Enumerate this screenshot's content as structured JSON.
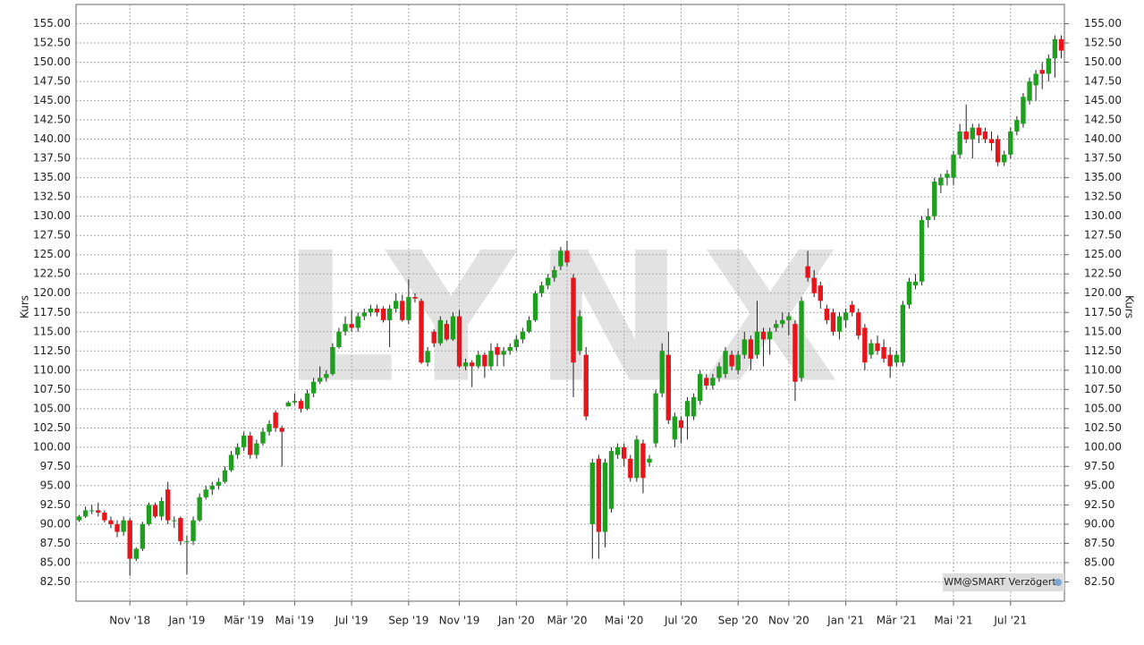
{
  "chart_data": {
    "type": "candlestick",
    "y_label": "Kurs",
    "watermark": "LYNX",
    "badge": "WM@SMART Verzögert",
    "up_color": "#1f9e1f",
    "down_color": "#e8141c",
    "grid": true,
    "ylim": [
      80,
      157.5
    ],
    "yticks": [
      {
        "value": 82.5,
        "label": "82.50"
      },
      {
        "value": 85,
        "label": "85.00"
      },
      {
        "value": 87.5,
        "label": "87.50"
      },
      {
        "value": 90,
        "label": "90.00"
      },
      {
        "value": 92.5,
        "label": "92.50"
      },
      {
        "value": 95,
        "label": "95.00"
      },
      {
        "value": 97.5,
        "label": "97.50"
      },
      {
        "value": 100,
        "label": "100.00"
      },
      {
        "value": 102.5,
        "label": "102.50"
      },
      {
        "value": 105,
        "label": "105.00"
      },
      {
        "value": 107.5,
        "label": "107.50"
      },
      {
        "value": 110,
        "label": "110.00"
      },
      {
        "value": 112.5,
        "label": "112.50"
      },
      {
        "value": 115,
        "label": "115.00"
      },
      {
        "value": 117.5,
        "label": "117.50"
      },
      {
        "value": 120,
        "label": "120.00"
      },
      {
        "value": 122.5,
        "label": "122.50"
      },
      {
        "value": 125,
        "label": "125.00"
      },
      {
        "value": 127.5,
        "label": "127.50"
      },
      {
        "value": 130,
        "label": "130.00"
      },
      {
        "value": 132.5,
        "label": "132.50"
      },
      {
        "value": 135,
        "label": "135.00"
      },
      {
        "value": 137.5,
        "label": "137.50"
      },
      {
        "value": 140,
        "label": "140.00"
      },
      {
        "value": 142.5,
        "label": "142.50"
      },
      {
        "value": 145,
        "label": "145.00"
      },
      {
        "value": 147.5,
        "label": "147.50"
      },
      {
        "value": 150,
        "label": "150.00"
      },
      {
        "value": 152.5,
        "label": "152.50"
      },
      {
        "value": 155,
        "label": "155.00"
      }
    ],
    "categories": [
      null,
      null,
      null,
      null,
      null,
      null,
      null,
      null,
      "Nov '18",
      null,
      null,
      null,
      null,
      null,
      null,
      null,
      null,
      "Jan '19",
      null,
      null,
      null,
      null,
      null,
      null,
      null,
      null,
      "Mär '19",
      null,
      null,
      null,
      null,
      null,
      null,
      null,
      "Mai '19",
      null,
      null,
      null,
      null,
      null,
      null,
      null,
      null,
      "Jul '19",
      null,
      null,
      null,
      null,
      null,
      null,
      null,
      null,
      "Sep '19",
      null,
      null,
      null,
      null,
      null,
      null,
      null,
      "Nov '19",
      null,
      null,
      null,
      null,
      null,
      null,
      null,
      null,
      "Jan '20",
      null,
      null,
      null,
      null,
      null,
      null,
      null,
      "Mär '20",
      null,
      null,
      null,
      null,
      null,
      null,
      null,
      null,
      "Mai '20",
      null,
      null,
      null,
      null,
      null,
      null,
      null,
      null,
      "Jul '20",
      null,
      null,
      null,
      null,
      null,
      null,
      null,
      null,
      "Sep '20",
      null,
      null,
      null,
      null,
      null,
      null,
      null,
      "Nov '20",
      null,
      null,
      null,
      null,
      null,
      null,
      null,
      null,
      "Jan '21",
      null,
      null,
      null,
      null,
      null,
      null,
      null,
      "Mär '21",
      null,
      null,
      null,
      null,
      null,
      null,
      null,
      null,
      "Mai '21",
      null,
      null,
      null,
      null,
      null,
      null,
      null,
      null,
      "Jul '21",
      null,
      null,
      null,
      null,
      null,
      null,
      null,
      null
    ],
    "open": [
      90.5,
      91.0,
      91.8,
      91.8,
      91.5,
      90.5,
      90.0,
      89.0,
      90.5,
      85.5,
      86.8,
      90.0,
      92.5,
      91.0,
      94.5,
      90.5,
      90.8,
      87.8,
      87.8,
      90.5,
      93.5,
      94.5,
      95.0,
      95.5,
      97.0,
      99.0,
      100.0,
      101.5,
      99.0,
      100.5,
      102.0,
      104.5,
      102.5,
      105.3,
      105.8,
      106.0,
      105.0,
      107.0,
      108.5,
      109.0,
      109.5,
      113.0,
      115.0,
      116.0,
      115.5,
      117.0,
      117.5,
      118.0,
      118.0,
      116.5,
      118.0,
      119.0,
      116.5,
      119.5,
      119.0,
      111.0,
      115.0,
      113.5,
      116.0,
      114.0,
      117.0,
      110.5,
      111.0,
      110.5,
      112.0,
      110.5,
      113.0,
      112.0,
      112.5,
      113.0,
      114.0,
      115.0,
      116.5,
      120.0,
      121.0,
      122.0,
      123.5,
      125.5,
      122.0,
      112.5,
      112.0,
      90.0,
      98.5,
      89.0,
      92.0,
      99.0,
      100.0,
      98.5,
      96.0,
      100.5,
      98.0,
      100.5,
      107.0,
      112.0,
      101.0,
      103.5,
      104.0,
      104.0,
      106.0,
      109.0,
      108.0,
      109.0,
      109.5,
      112.0,
      110.0,
      112.0,
      114.0,
      112.0,
      115.0,
      114.0,
      115.5,
      116.0,
      116.5,
      116.0,
      109.0,
      123.5,
      122.0,
      121.0,
      118.0,
      117.5,
      115.0,
      116.5,
      118.5,
      117.5,
      115.5,
      112.0,
      113.5,
      113.0,
      112.0,
      111.0,
      111.0,
      118.5,
      121.0,
      121.5,
      129.5,
      130.0,
      134.0,
      135.0,
      135.0,
      138.0,
      141.0,
      140.0,
      141.5,
      141.0,
      140.0,
      140.0,
      137.0,
      138.0,
      141.0,
      142.0,
      145.0,
      147.0,
      149.0,
      148.5,
      150.5,
      153.0
    ],
    "high": [
      91.2,
      92.3,
      92.5,
      92.8,
      91.8,
      91.0,
      90.5,
      91.0,
      90.8,
      87.0,
      90.3,
      92.8,
      92.8,
      93.5,
      95.5,
      91.0,
      91.0,
      88.5,
      91.0,
      94.0,
      95.0,
      95.5,
      96.0,
      97.5,
      99.5,
      100.5,
      102.0,
      102.0,
      101.0,
      102.5,
      103.5,
      104.8,
      102.8,
      106.0,
      107.0,
      106.3,
      107.5,
      109.0,
      110.5,
      110.0,
      113.5,
      115.5,
      117.0,
      117.8,
      117.5,
      118.0,
      118.5,
      118.5,
      118.3,
      118.5,
      120.0,
      119.8,
      121.8,
      120.0,
      119.3,
      113.0,
      115.3,
      117.0,
      116.5,
      117.5,
      117.8,
      111.5,
      111.3,
      112.5,
      112.3,
      113.5,
      113.5,
      113.0,
      113.5,
      114.5,
      115.5,
      117.0,
      120.3,
      121.5,
      122.5,
      123.5,
      126.0,
      126.8,
      122.5,
      117.8,
      113.0,
      98.5,
      99.0,
      98.5,
      100.0,
      100.5,
      100.5,
      99.0,
      101.5,
      101.0,
      99.0,
      107.5,
      113.5,
      115.0,
      104.5,
      104.0,
      106.5,
      107.0,
      110.0,
      109.5,
      109.5,
      111.0,
      113.0,
      112.5,
      112.5,
      115.0,
      114.5,
      119.0,
      115.5,
      115.5,
      116.5,
      117.5,
      117.5,
      116.5,
      119.5,
      125.5,
      123.0,
      121.5,
      118.5,
      118.0,
      117.5,
      118.0,
      119.0,
      118.0,
      116.0,
      114.0,
      114.5,
      114.0,
      113.0,
      112.5,
      119.0,
      122.0,
      122.5,
      130.0,
      131.0,
      135.0,
      135.5,
      136.0,
      138.5,
      142.0,
      144.5,
      142.0,
      142.0,
      141.5,
      141.0,
      140.5,
      138.5,
      141.5,
      143.0,
      146.0,
      148.0,
      149.0,
      150.0,
      151.0,
      153.5,
      153.5
    ],
    "low": [
      90.3,
      90.8,
      91.3,
      91.0,
      90.2,
      89.5,
      88.3,
      88.5,
      83.3,
      85.2,
      86.5,
      89.8,
      90.8,
      90.5,
      90.0,
      89.5,
      87.3,
      83.5,
      87.3,
      90.3,
      93.2,
      93.8,
      94.5,
      95.3,
      96.8,
      98.5,
      99.5,
      98.5,
      98.5,
      100.2,
      101.5,
      102.0,
      97.5,
      105.3,
      105.5,
      104.5,
      104.8,
      106.5,
      108.2,
      108.5,
      109.3,
      112.8,
      114.5,
      115.0,
      115.0,
      116.5,
      117.0,
      117.0,
      116.2,
      113.0,
      117.5,
      116.3,
      116.0,
      118.8,
      110.8,
      110.5,
      113.0,
      113.2,
      113.8,
      113.8,
      110.3,
      110.0,
      107.8,
      110.2,
      109.0,
      110.0,
      110.5,
      110.5,
      112.0,
      112.5,
      113.5,
      114.8,
      116.3,
      119.5,
      120.5,
      121.5,
      123.0,
      123.5,
      106.5,
      112.0,
      103.5,
      85.5,
      85.5,
      87.0,
      91.5,
      98.5,
      97.5,
      95.5,
      95.5,
      94.0,
      97.5,
      100.0,
      106.5,
      103.0,
      100.0,
      100.5,
      101.0,
      103.5,
      105.5,
      107.5,
      107.5,
      108.5,
      109.0,
      110.0,
      109.5,
      111.5,
      110.0,
      111.5,
      110.5,
      112.0,
      115.0,
      115.5,
      114.5,
      106.0,
      108.5,
      121.5,
      119.5,
      118.0,
      116.0,
      114.5,
      114.0,
      115.5,
      117.0,
      114.0,
      110.0,
      111.5,
      112.0,
      111.0,
      109.0,
      110.5,
      110.5,
      118.0,
      120.5,
      121.0,
      128.5,
      129.5,
      133.0,
      134.0,
      134.0,
      137.5,
      139.5,
      137.5,
      139.5,
      139.5,
      138.5,
      136.5,
      136.5,
      137.5,
      140.5,
      141.5,
      144.5,
      145.0,
      146.5,
      147.5,
      148.0,
      150.5
    ],
    "close": [
      91.0,
      91.8,
      91.8,
      91.5,
      90.5,
      90.0,
      89.0,
      90.5,
      85.5,
      86.8,
      90.0,
      92.5,
      91.0,
      93.0,
      90.5,
      90.5,
      87.8,
      87.8,
      90.5,
      93.5,
      94.5,
      95.0,
      95.5,
      97.0,
      99.0,
      100.0,
      101.5,
      99.0,
      100.5,
      102.0,
      103.0,
      102.5,
      102.0,
      105.8,
      106.0,
      105.0,
      107.0,
      108.5,
      109.0,
      109.5,
      113.0,
      115.0,
      116.0,
      115.5,
      117.0,
      117.5,
      118.0,
      117.5,
      116.5,
      118.0,
      119.0,
      116.5,
      119.5,
      119.3,
      111.0,
      112.5,
      113.5,
      116.5,
      114.0,
      117.0,
      110.5,
      111.0,
      110.5,
      112.0,
      110.5,
      112.5,
      112.0,
      112.5,
      113.0,
      114.0,
      115.0,
      116.5,
      120.0,
      121.0,
      122.0,
      123.0,
      125.5,
      124.0,
      111.0,
      117.0,
      104.0,
      98.0,
      89.0,
      98.0,
      99.5,
      100.0,
      98.5,
      96.0,
      101.0,
      96.0,
      98.5,
      107.0,
      112.5,
      103.5,
      104.0,
      102.5,
      106.0,
      106.5,
      109.5,
      108.0,
      109.0,
      110.5,
      112.5,
      110.5,
      112.0,
      114.0,
      111.5,
      115.0,
      114.0,
      115.0,
      116.0,
      116.5,
      117.0,
      108.5,
      119.0,
      122.0,
      120.0,
      119.0,
      116.5,
      115.0,
      117.0,
      117.5,
      117.5,
      114.5,
      111.0,
      113.5,
      112.5,
      111.5,
      110.5,
      112.0,
      118.5,
      121.5,
      121.5,
      129.5,
      130.0,
      134.5,
      135.0,
      135.5,
      138.0,
      141.0,
      140.0,
      141.5,
      140.5,
      140.0,
      139.5,
      137.0,
      138.0,
      141.0,
      142.5,
      145.5,
      147.5,
      148.5,
      148.5,
      150.5,
      153.0,
      151.5
    ]
  }
}
